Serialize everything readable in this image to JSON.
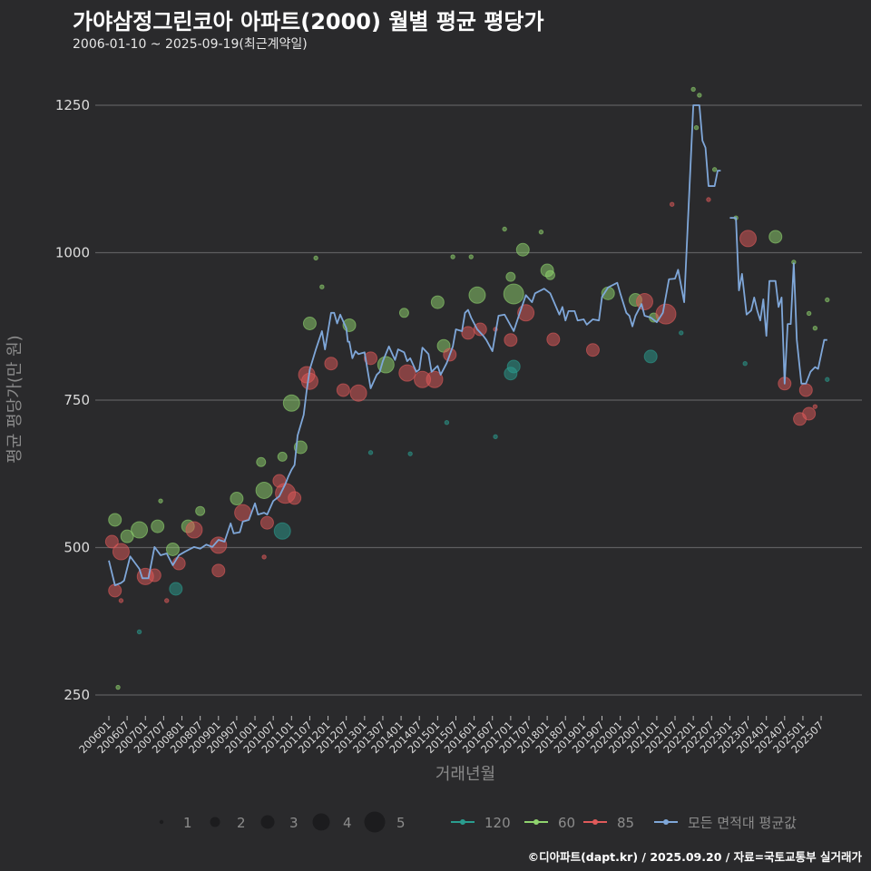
{
  "title": "가야삼정그린코아 아파트(2000) 월별 평균 평당가",
  "subtitle": "2006-01-10 ~ 2025-09-19(최근계약일)",
  "footer": "©디아파트(dapt.kr) / 2025.09.20 / 자료=국토교통부 실거래가",
  "colors": {
    "background": "#2a2a2c",
    "grid": "#5e5e60",
    "s120": "#2a9d8f",
    "s60": "#8fd46e",
    "s85": "#e05a5a",
    "avg": "#7fa7d9"
  },
  "chart_data": {
    "type": "scatter+line",
    "title": "가야삼정그린코아 아파트(2000) 월별 평균 평당가",
    "xlabel": "거래년월",
    "ylabel": "평균 평당가(만 원)",
    "x_unit": "months since 2006-01",
    "xlim": [
      0,
      237
    ],
    "ylim": [
      200,
      1300
    ],
    "yticks": [
      250,
      500,
      750,
      1000,
      1250
    ],
    "xticks": [
      "200601",
      "200607",
      "200701",
      "200707",
      "200801",
      "200807",
      "200901",
      "200907",
      "201001",
      "201007",
      "201101",
      "201107",
      "201201",
      "201207",
      "201301",
      "201307",
      "201401",
      "201407",
      "201501",
      "201507",
      "201601",
      "201607",
      "201701",
      "201707",
      "201801",
      "201807",
      "201901",
      "201907",
      "202001",
      "202007",
      "202101",
      "202107",
      "202201",
      "202207",
      "202301",
      "202307",
      "202401",
      "202407",
      "202501",
      "202507"
    ],
    "grid": true,
    "size_legend": {
      "title": "",
      "values": [
        "1",
        "2",
        "3",
        "4",
        "5"
      ]
    },
    "legend": [
      {
        "key": "s120",
        "label": "120"
      },
      {
        "key": "s60",
        "label": "60"
      },
      {
        "key": "s85",
        "label": "85"
      },
      {
        "key": "avg",
        "label": "모든 면적대 평균값"
      }
    ],
    "legend_position": "bottom",
    "avg_line": [
      [
        [
          0,
          478
        ],
        [
          2,
          436
        ],
        [
          4,
          440
        ],
        [
          5,
          444
        ],
        [
          7,
          485
        ],
        [
          10,
          464
        ],
        [
          11,
          448
        ],
        [
          13,
          448
        ],
        [
          15,
          501
        ],
        [
          17,
          487
        ],
        [
          19,
          490
        ],
        [
          21,
          470
        ],
        [
          23,
          487
        ],
        [
          25,
          493
        ],
        [
          28,
          501
        ],
        [
          30,
          498
        ],
        [
          32,
          505
        ],
        [
          34,
          501
        ],
        [
          36,
          513
        ],
        [
          38,
          510
        ],
        [
          40,
          541
        ],
        [
          41,
          524
        ],
        [
          43,
          526
        ],
        [
          44,
          544
        ],
        [
          46,
          547
        ],
        [
          48,
          575
        ],
        [
          49,
          556
        ],
        [
          51,
          559
        ],
        [
          52,
          556
        ],
        [
          54,
          579
        ],
        [
          56,
          587
        ],
        [
          58,
          608
        ],
        [
          59,
          621
        ],
        [
          60,
          632
        ],
        [
          61,
          640
        ],
        [
          62,
          690
        ],
        [
          64,
          725
        ],
        [
          65,
          767
        ],
        [
          66,
          802
        ],
        [
          68,
          836
        ],
        [
          70,
          867
        ],
        [
          71,
          836
        ],
        [
          73,
          898
        ],
        [
          74,
          898
        ],
        [
          75,
          880
        ],
        [
          76,
          895
        ],
        [
          78,
          872
        ],
        [
          78.5,
          849
        ],
        [
          79,
          849
        ],
        [
          80,
          821
        ],
        [
          81,
          833
        ],
        [
          82,
          828
        ],
        [
          84,
          831
        ],
        [
          86,
          770
        ],
        [
          88,
          793
        ],
        [
          89,
          798
        ],
        [
          90,
          816
        ],
        [
          92,
          841
        ],
        [
          94,
          818
        ],
        [
          95,
          836
        ],
        [
          97,
          831
        ],
        [
          98,
          816
        ],
        [
          99,
          821
        ],
        [
          101,
          798
        ],
        [
          102,
          802
        ],
        [
          103,
          839
        ],
        [
          105,
          828
        ],
        [
          106,
          798
        ],
        [
          108,
          808
        ],
        [
          109,
          793
        ],
        [
          111,
          813
        ],
        [
          113,
          841
        ],
        [
          114,
          870
        ],
        [
          116,
          867
        ],
        [
          117,
          898
        ],
        [
          118,
          903
        ],
        [
          119,
          890
        ],
        [
          121,
          870
        ],
        [
          123,
          859
        ],
        [
          124,
          852
        ],
        [
          126,
          833
        ],
        [
          128,
          893
        ],
        [
          130,
          895
        ],
        [
          133,
          867
        ],
        [
          135,
          898
        ],
        [
          137,
          928
        ],
        [
          139,
          916
        ],
        [
          140,
          931
        ],
        [
          143,
          939
        ],
        [
          145,
          931
        ],
        [
          148,
          895
        ],
        [
          149,
          908
        ],
        [
          150,
          885
        ],
        [
          151,
          901
        ],
        [
          153,
          901
        ],
        [
          154,
          885
        ],
        [
          156,
          887
        ],
        [
          157,
          878
        ],
        [
          159,
          887
        ],
        [
          161,
          885
        ],
        [
          162,
          925
        ],
        [
          164,
          941
        ],
        [
          167,
          949
        ],
        [
          168,
          931
        ],
        [
          170,
          898
        ],
        [
          171,
          893
        ],
        [
          172,
          875
        ],
        [
          173,
          893
        ],
        [
          175,
          913
        ],
        [
          176,
          893
        ],
        [
          178,
          890
        ],
        [
          180,
          882
        ],
        [
          182,
          898
        ],
        [
          184,
          955
        ],
        [
          186,
          956
        ],
        [
          187,
          971
        ],
        [
          189,
          916
        ],
        [
          192,
          1250
        ],
        [
          194,
          1250
        ],
        [
          195,
          1190
        ],
        [
          196,
          1178
        ],
        [
          197,
          1113
        ],
        [
          199,
          1113
        ],
        [
          200,
          1139
        ],
        [
          201,
          1139
        ]
      ],
      [
        [
          204,
          1059
        ],
        [
          206,
          1059
        ],
        [
          207,
          936
        ],
        [
          208,
          964
        ],
        [
          209.5,
          895
        ],
        [
          211,
          902
        ],
        [
          212,
          924
        ],
        [
          213,
          902
        ],
        [
          214,
          885
        ],
        [
          215,
          921
        ],
        [
          216,
          859
        ],
        [
          217,
          952
        ],
        [
          219,
          952
        ],
        [
          220,
          908
        ],
        [
          221,
          924
        ],
        [
          222,
          778
        ],
        [
          223,
          879
        ],
        [
          224,
          879
        ],
        [
          225,
          982
        ],
        [
          226,
          852
        ],
        [
          227.5,
          778
        ],
        [
          229,
          778
        ],
        [
          230.5,
          798
        ],
        [
          232,
          806
        ],
        [
          233,
          803
        ],
        [
          235,
          852
        ],
        [
          236,
          852
        ]
      ]
    ],
    "points": [
      {
        "s": "s60",
        "m": 2,
        "v": 547,
        "n": 3
      },
      {
        "s": "s60",
        "m": 6,
        "v": 519,
        "n": 3
      },
      {
        "s": "s60",
        "m": 10,
        "v": 530,
        "n": 4
      },
      {
        "s": "s60",
        "m": 16,
        "v": 536,
        "n": 3
      },
      {
        "s": "s60",
        "m": 21,
        "v": 497,
        "n": 3
      },
      {
        "s": "s60",
        "m": 26,
        "v": 536,
        "n": 3
      },
      {
        "s": "s60",
        "m": 30,
        "v": 562,
        "n": 2
      },
      {
        "s": "s60",
        "m": 42,
        "v": 583,
        "n": 3
      },
      {
        "s": "s60",
        "m": 50,
        "v": 645,
        "n": 2
      },
      {
        "s": "s60",
        "m": 51,
        "v": 597,
        "n": 4
      },
      {
        "s": "s60",
        "m": 57,
        "v": 654,
        "n": 2
      },
      {
        "s": "s60",
        "m": 63,
        "v": 670,
        "n": 3
      },
      {
        "s": "s60",
        "m": 60,
        "v": 745,
        "n": 4
      },
      {
        "s": "s60",
        "m": 66,
        "v": 880,
        "n": 3
      },
      {
        "s": "s60",
        "m": 79,
        "v": 877,
        "n": 3
      },
      {
        "s": "s60",
        "m": 91,
        "v": 810,
        "n": 4
      },
      {
        "s": "s60",
        "m": 97,
        "v": 898,
        "n": 2
      },
      {
        "s": "s60",
        "m": 108,
        "v": 916,
        "n": 3
      },
      {
        "s": "s60",
        "m": 110,
        "v": 842,
        "n": 3
      },
      {
        "s": "s60",
        "m": 121,
        "v": 928,
        "n": 4
      },
      {
        "s": "s60",
        "m": 133,
        "v": 930,
        "n": 5
      },
      {
        "s": "s60",
        "m": 136,
        "v": 1005,
        "n": 3
      },
      {
        "s": "s60",
        "m": 132,
        "v": 959,
        "n": 2
      },
      {
        "s": "s60",
        "m": 144,
        "v": 970,
        "n": 3
      },
      {
        "s": "s60",
        "m": 145,
        "v": 962,
        "n": 2
      },
      {
        "s": "s60",
        "m": 164,
        "v": 931,
        "n": 3
      },
      {
        "s": "s60",
        "m": 173,
        "v": 920,
        "n": 3
      },
      {
        "s": "s60",
        "m": 179,
        "v": 890,
        "n": 2
      },
      {
        "s": "s60",
        "m": 219,
        "v": 1027,
        "n": 3
      },
      {
        "s": "s60",
        "m": 192,
        "v": 1277,
        "n": 1
      },
      {
        "s": "s60",
        "m": 194,
        "v": 1267,
        "n": 1
      },
      {
        "s": "s60",
        "m": 193,
        "v": 1212,
        "n": 1
      },
      {
        "s": "s60",
        "m": 199,
        "v": 1141,
        "n": 1
      },
      {
        "s": "s60",
        "m": 206,
        "v": 1059,
        "n": 1
      },
      {
        "s": "s60",
        "m": 225,
        "v": 984,
        "n": 1
      },
      {
        "s": "s60",
        "m": 230,
        "v": 897,
        "n": 1
      },
      {
        "s": "s60",
        "m": 232,
        "v": 872,
        "n": 1
      },
      {
        "s": "s60",
        "m": 236,
        "v": 920,
        "n": 1
      },
      {
        "s": "s60",
        "m": 130,
        "v": 1040,
        "n": 1
      },
      {
        "s": "s60",
        "m": 142,
        "v": 1035,
        "n": 1
      },
      {
        "s": "s60",
        "m": 68,
        "v": 991,
        "n": 1
      },
      {
        "s": "s60",
        "m": 70,
        "v": 942,
        "n": 1
      },
      {
        "s": "s60",
        "m": 113,
        "v": 993,
        "n": 1
      },
      {
        "s": "s60",
        "m": 119,
        "v": 993,
        "n": 1
      },
      {
        "s": "s60",
        "m": 17,
        "v": 579,
        "n": 1
      },
      {
        "s": "s60",
        "m": 3,
        "v": 263,
        "n": 1
      },
      {
        "s": "s120",
        "m": 22,
        "v": 430,
        "n": 3
      },
      {
        "s": "s120",
        "m": 57,
        "v": 528,
        "n": 4
      },
      {
        "s": "s120",
        "m": 10,
        "v": 357,
        "n": 1
      },
      {
        "s": "s120",
        "m": 133,
        "v": 807,
        "n": 3
      },
      {
        "s": "s120",
        "m": 132,
        "v": 795,
        "n": 3
      },
      {
        "s": "s120",
        "m": 178,
        "v": 824,
        "n": 3
      },
      {
        "s": "s120",
        "m": 99,
        "v": 659,
        "n": 1
      },
      {
        "s": "s120",
        "m": 86,
        "v": 661,
        "n": 1
      },
      {
        "s": "s120",
        "m": 127,
        "v": 688,
        "n": 1
      },
      {
        "s": "s120",
        "m": 111,
        "v": 712,
        "n": 1
      },
      {
        "s": "s120",
        "m": 209,
        "v": 812,
        "n": 1
      },
      {
        "s": "s120",
        "m": 236,
        "v": 785,
        "n": 1
      },
      {
        "s": "s120",
        "m": 188,
        "v": 864,
        "n": 1
      },
      {
        "s": "s85",
        "m": 1,
        "v": 510,
        "n": 3
      },
      {
        "s": "s85",
        "m": 2,
        "v": 427,
        "n": 3
      },
      {
        "s": "s85",
        "m": 4,
        "v": 493,
        "n": 4
      },
      {
        "s": "s85",
        "m": 12,
        "v": 451,
        "n": 4
      },
      {
        "s": "s85",
        "m": 15,
        "v": 453,
        "n": 3
      },
      {
        "s": "s85",
        "m": 23,
        "v": 473,
        "n": 3
      },
      {
        "s": "s85",
        "m": 28,
        "v": 530,
        "n": 4
      },
      {
        "s": "s85",
        "m": 36,
        "v": 504,
        "n": 4
      },
      {
        "s": "s85",
        "m": 36,
        "v": 461,
        "n": 3
      },
      {
        "s": "s85",
        "m": 44,
        "v": 559,
        "n": 4
      },
      {
        "s": "s85",
        "m": 52,
        "v": 542,
        "n": 3
      },
      {
        "s": "s85",
        "m": 56,
        "v": 613,
        "n": 3
      },
      {
        "s": "s85",
        "m": 58,
        "v": 592,
        "n": 5
      },
      {
        "s": "s85",
        "m": 61,
        "v": 584,
        "n": 3
      },
      {
        "s": "s85",
        "m": 65,
        "v": 793,
        "n": 4
      },
      {
        "s": "s85",
        "m": 66,
        "v": 782,
        "n": 4
      },
      {
        "s": "s85",
        "m": 73,
        "v": 812,
        "n": 3
      },
      {
        "s": "s85",
        "m": 77,
        "v": 767,
        "n": 3
      },
      {
        "s": "s85",
        "m": 82,
        "v": 762,
        "n": 4
      },
      {
        "s": "s85",
        "m": 86,
        "v": 821,
        "n": 3
      },
      {
        "s": "s85",
        "m": 98,
        "v": 796,
        "n": 4
      },
      {
        "s": "s85",
        "m": 103,
        "v": 785,
        "n": 4
      },
      {
        "s": "s85",
        "m": 107,
        "v": 785,
        "n": 4
      },
      {
        "s": "s85",
        "m": 112,
        "v": 827,
        "n": 3
      },
      {
        "s": "s85",
        "m": 118,
        "v": 864,
        "n": 3
      },
      {
        "s": "s85",
        "m": 122,
        "v": 870,
        "n": 3
      },
      {
        "s": "s85",
        "m": 132,
        "v": 852,
        "n": 3
      },
      {
        "s": "s85",
        "m": 137,
        "v": 898,
        "n": 4
      },
      {
        "s": "s85",
        "m": 146,
        "v": 853,
        "n": 3
      },
      {
        "s": "s85",
        "m": 159,
        "v": 835,
        "n": 3
      },
      {
        "s": "s85",
        "m": 176,
        "v": 917,
        "n": 4
      },
      {
        "s": "s85",
        "m": 183,
        "v": 896,
        "n": 5
      },
      {
        "s": "s85",
        "m": 210,
        "v": 1024,
        "n": 4
      },
      {
        "s": "s85",
        "m": 222,
        "v": 778,
        "n": 3
      },
      {
        "s": "s85",
        "m": 229,
        "v": 767,
        "n": 3
      },
      {
        "s": "s85",
        "m": 227,
        "v": 718,
        "n": 3
      },
      {
        "s": "s85",
        "m": 230,
        "v": 727,
        "n": 3
      },
      {
        "s": "s85",
        "m": 232,
        "v": 739,
        "n": 1
      },
      {
        "s": "s85",
        "m": 197,
        "v": 1090,
        "n": 1
      },
      {
        "s": "s85",
        "m": 185,
        "v": 1082,
        "n": 1
      },
      {
        "s": "s85",
        "m": 19,
        "v": 410,
        "n": 1
      },
      {
        "s": "s85",
        "m": 4,
        "v": 410,
        "n": 1
      },
      {
        "s": "s85",
        "m": 51,
        "v": 484,
        "n": 1
      },
      {
        "s": "s85",
        "m": 127,
        "v": 870,
        "n": 1
      }
    ]
  }
}
